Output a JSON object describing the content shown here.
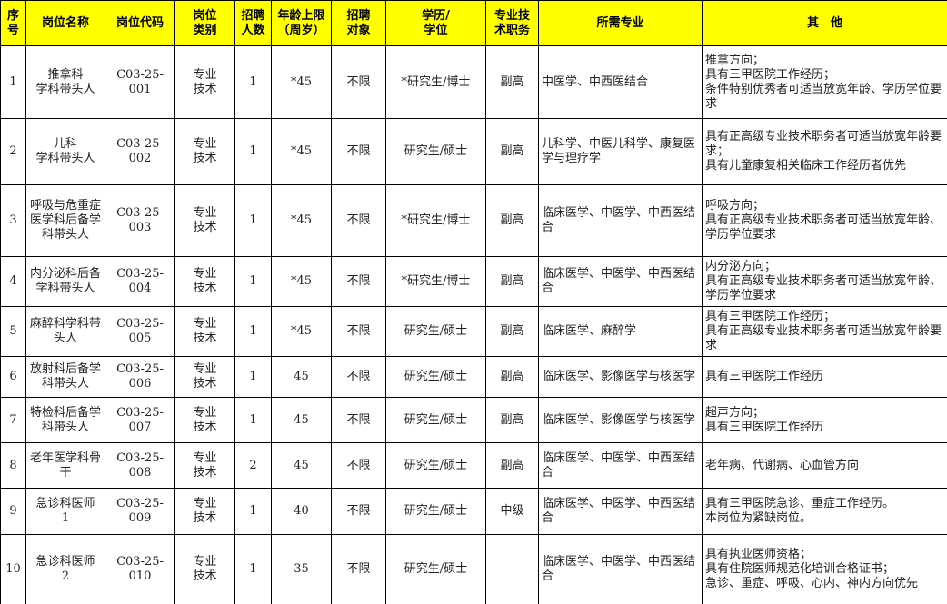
{
  "table": {
    "header": [
      "序\n号",
      "岗位名称",
      "岗位代码",
      "岗位\n类别",
      "招聘\n人数",
      "年龄上限\n（周岁）",
      "招聘\n对象",
      "学历/\n学位",
      "专业技\n术职务",
      "所需专业",
      "其　他"
    ],
    "rows": [
      [
        "1",
        "推拿科\n学科带头人",
        "C03-25-\n001",
        "专业\n技术",
        "1",
        "*45",
        "不限",
        "*研究生/博士",
        "副高",
        "中医学、中西医结合",
        "推拿方向；\n具有三甲医院工作经历；\n条件特别优秀者可适当放宽年龄、学历学位要求"
      ],
      [
        "2",
        "儿科\n学科带头人",
        "C03-25-\n002",
        "专业\n技术",
        "1",
        "*45",
        "不限",
        "研究生/硕士",
        "副高",
        "儿科学、中医儿科学、康复医学与理疗学",
        "具有正高级专业技术职务者可适当放宽年龄要求；\n具有儿童康复相关临床工作经历者优先"
      ],
      [
        "3",
        "呼吸与危重症医学科后备学科带头人",
        "C03-25-\n003",
        "专业\n技术",
        "1",
        "*45",
        "不限",
        "*研究生/博士",
        "副高",
        "临床医学、中医学、中西医结合",
        "呼吸方向；\n具有正高级专业技术职务者可适当放宽年龄、学历学位要求"
      ],
      [
        "4",
        "内分泌科后备学科带头人",
        "C03-25-\n004",
        "专业\n技术",
        "1",
        "*45",
        "不限",
        "*研究生/博士",
        "副高",
        "临床医学、中医学、中西医结合",
        "内分泌方向；\n具有正高级专业技术职务者可适当放宽年龄、学历学位要求"
      ],
      [
        "5",
        "麻醉科学科带头人",
        "C03-25-\n005",
        "专业\n技术",
        "1",
        "*45",
        "不限",
        "研究生/硕士",
        "副高",
        "临床医学、麻醉学",
        "具有三甲医院工作经历；\n具有正高级专业技术职务者可适当放宽年龄要求"
      ],
      [
        "6",
        "放射科后备学科带头人",
        "C03-25-\n006",
        "专业\n技术",
        "1",
        "45",
        "不限",
        "研究生/硕士",
        "副高",
        "临床医学、影像医学与核医学",
        "具有三甲医院工作经历"
      ],
      [
        "7",
        "特检科后备学科带头人",
        "C03-25-\n007",
        "专业\n技术",
        "1",
        "45",
        "不限",
        "研究生/硕士",
        "副高",
        "临床医学、影像医学与核医学",
        "超声方向；\n具有三甲医院工作经历"
      ],
      [
        "8",
        "老年医学科骨干",
        "C03-25-\n008",
        "专业\n技术",
        "2",
        "45",
        "不限",
        "研究生/硕士",
        "副高",
        "临床医学、中医学、中西医结合",
        "老年病、代谢病、心血管方向"
      ],
      [
        "9",
        "急诊科医师\n1",
        "C03-25-\n009",
        "专业\n技术",
        "1",
        "40",
        "不限",
        "研究生/硕士",
        "中级",
        "临床医学、中医学、中西医结合",
        "具有三甲医院急诊、重症工作经历。\n本岗位为紧缺岗位。"
      ],
      [
        "10",
        "急诊科医师\n2",
        "C03-25-\n010",
        "专业\n技术",
        "1",
        "35",
        "不限",
        "研究生/硕士",
        null,
        "临床医学、中医学、中西医结合",
        "具有执业医师资格；\n具有住院医师规范化培训合格证书；\n急诊、重症、呼吸、心内、神内方向优先"
      ]
    ]
  }
}
